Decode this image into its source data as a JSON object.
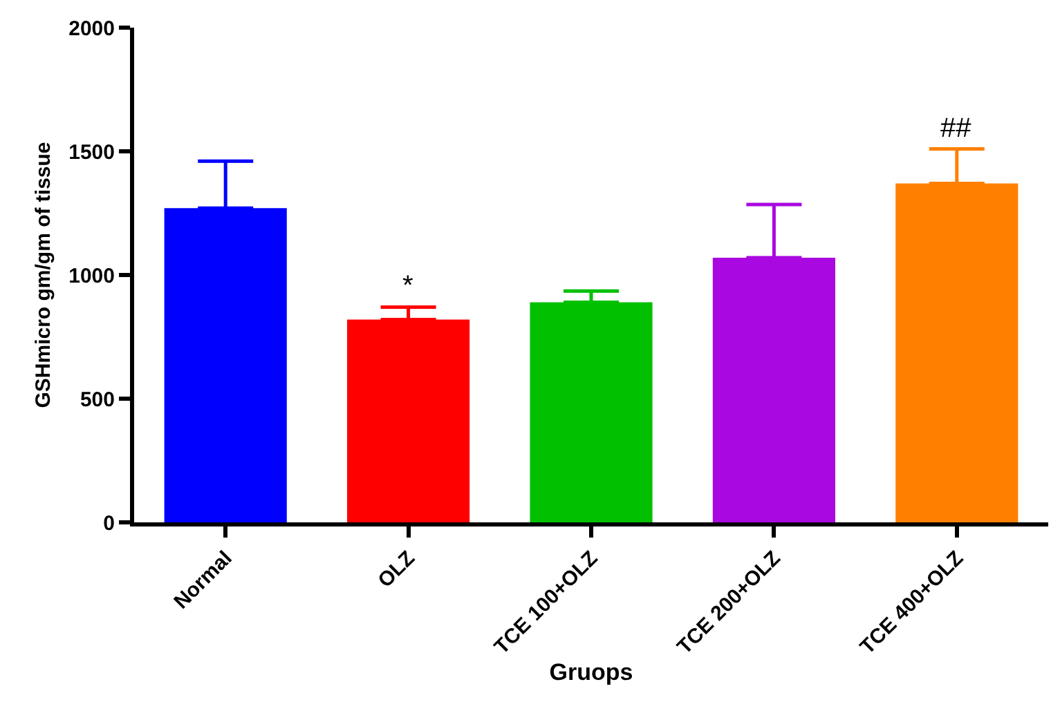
{
  "chart_data": {
    "type": "bar",
    "xlabel": "Gruops",
    "ylabel": "GSHmicro gm/gm of tissue",
    "categories": [
      "Normal",
      "OLZ",
      "TCE 100+OLZ",
      "TCE 200+OLZ",
      "TCE 400+OLZ"
    ],
    "values": [
      1270,
      820,
      890,
      1070,
      1370
    ],
    "errors": [
      [
        1270,
        1460
      ],
      [
        820,
        870
      ],
      [
        890,
        935
      ],
      [
        1070,
        1285
      ],
      [
        1370,
        1510
      ]
    ],
    "colors": [
      "#0000ff",
      "#ff0000",
      "#00c000",
      "#aa08e0",
      "#ff8000"
    ],
    "ylim": [
      0,
      2000
    ],
    "yticks": [
      0,
      500,
      1000,
      1500,
      2000
    ],
    "grid": false,
    "annotations": [
      {
        "text": "*",
        "x": "OLZ",
        "y": 870
      },
      {
        "text": "##",
        "x": "TCE 400+OLZ",
        "y": 1510
      }
    ]
  }
}
